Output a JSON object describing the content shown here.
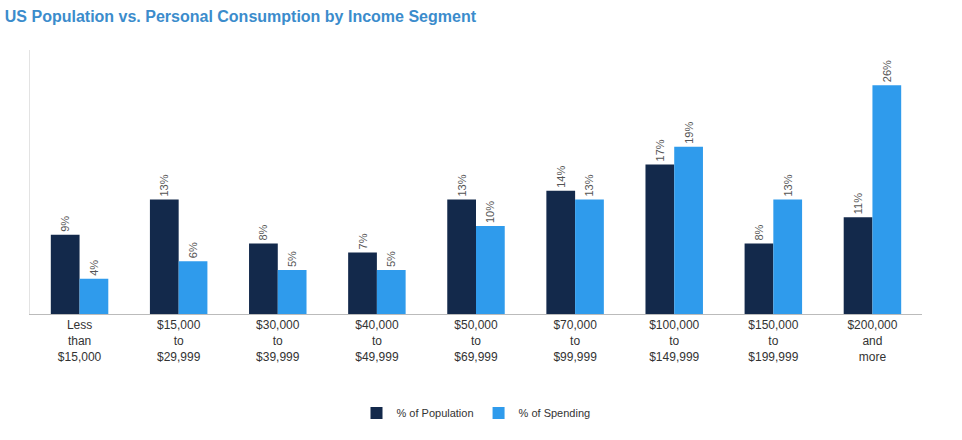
{
  "chart_data": {
    "type": "bar",
    "title": "US Population vs. Personal Consumption by Income Segment",
    "categories": [
      "Less than $15,000",
      "$15,000 to $29,999",
      "$30,000 to $39,999",
      "$40,000 to $49,999",
      "$50,000 to $69,999",
      "$70,000 to $99,999",
      "$100,000 to $149,999",
      "$150,000 to $199,999",
      "$200,000 and more"
    ],
    "series": [
      {
        "name": "% of Population",
        "color": "#13294b",
        "values": [
          9,
          13,
          8,
          7,
          13,
          14,
          17,
          8,
          11
        ],
        "value_labels": [
          "9%",
          "13%",
          "8%",
          "7%",
          "13%",
          "14%",
          "17%",
          "8%",
          "11%"
        ]
      },
      {
        "name": "% of Spending",
        "color": "#2f9bec",
        "values": [
          4,
          6,
          5,
          5,
          10,
          13,
          19,
          13,
          26
        ],
        "value_labels": [
          "4%",
          "6%",
          "5%",
          "5%",
          "10%",
          "13%",
          "19%",
          "13%",
          "26%"
        ]
      }
    ],
    "ylim": [
      0,
      30
    ],
    "grid": false,
    "legend": "bottom",
    "data_labels": true,
    "tick_labels": "x"
  }
}
